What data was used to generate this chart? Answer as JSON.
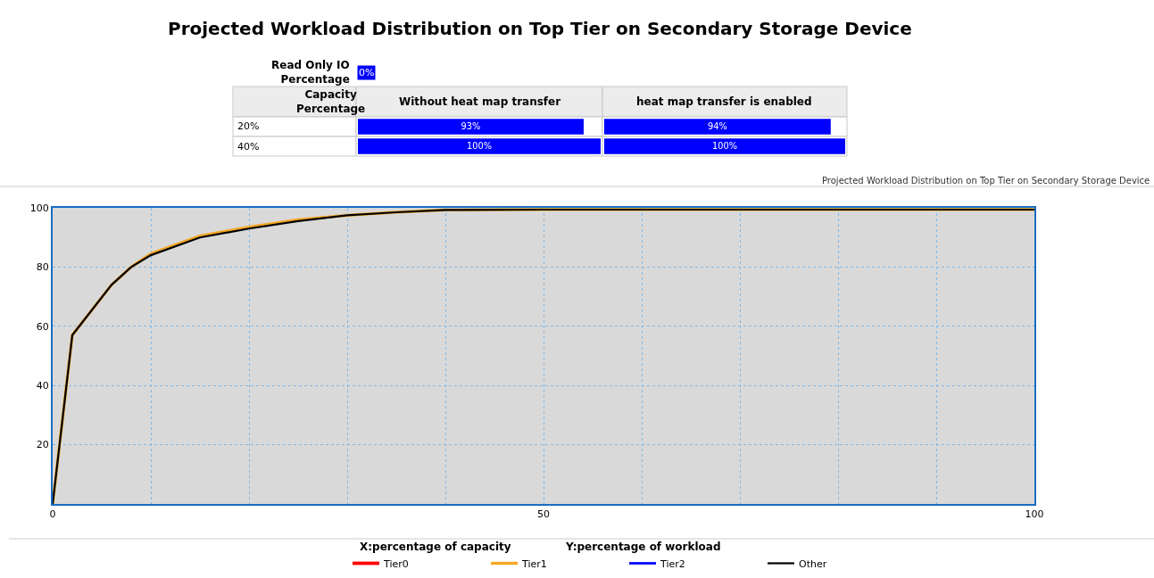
{
  "chart_data": [
    {
      "type": "other",
      "title": "Projected Workload Distribution on Top Tier on Secondary Storage Device",
      "annotations": [
        "Read Only IO Percentage",
        "0%"
      ],
      "legend_title": "Capacity Percentage",
      "categories": [
        "20%",
        "40%"
      ],
      "series": [
        {
          "name": "Without heat map transfer",
          "color": "#0000ff",
          "values": [
            93,
            100
          ],
          "value_labels": [
            "93%",
            "100%"
          ]
        },
        {
          "name": "heat map transfer is enabled",
          "color": "#0000ff",
          "values": [
            94,
            100
          ],
          "value_labels": [
            "94%",
            "100%"
          ]
        }
      ]
    },
    {
      "type": "line",
      "annotations": [
        "Projected Workload Distribution on Top Tier on Secondary Storage Device",
        "X:percentage of capacity",
        "Y:percentage of workload"
      ],
      "x": [
        0,
        2,
        6,
        8,
        10,
        15,
        20,
        25,
        30,
        35,
        40,
        50,
        60,
        70,
        80,
        90,
        100
      ],
      "series": [
        {
          "name": "Tier0",
          "color": "#ff0000",
          "values": [
            null,
            null,
            null,
            null,
            null,
            null,
            null,
            null,
            null,
            null,
            null,
            null,
            null,
            null,
            null,
            null,
            null
          ]
        },
        {
          "name": "Tier1",
          "color": "#f5a623",
          "values": [
            0,
            57,
            74,
            80,
            84.5,
            90.5,
            93.5,
            96,
            97.5,
            98.5,
            99.3,
            99.4,
            99.4,
            99.4,
            99.4,
            99.4,
            99.4
          ]
        },
        {
          "name": "Tier2",
          "color": "#0000ff",
          "values": [
            null,
            null,
            null,
            null,
            null,
            null,
            null,
            null,
            null,
            null,
            null,
            null,
            null,
            null,
            null,
            null,
            null
          ]
        },
        {
          "name": "Other",
          "color": "#000000",
          "values": [
            0,
            57,
            74,
            80,
            84,
            90,
            93,
            95.5,
            97.5,
            98.5,
            99.3,
            99.4,
            99.4,
            99.4,
            99.4,
            99.4,
            99.4
          ]
        }
      ],
      "xlim": [
        0,
        100
      ],
      "ylim": [
        0,
        100
      ],
      "xticks": [
        0,
        {
          "value": 10,
          "label": null
        },
        {
          "value": 20,
          "label": null
        },
        {
          "value": 30,
          "label": null
        },
        {
          "value": 40,
          "label": null
        },
        50,
        {
          "value": 60,
          "label": null
        },
        {
          "value": 70,
          "label": null
        },
        {
          "value": 80,
          "label": null
        },
        {
          "value": 90,
          "label": null
        },
        100
      ],
      "yticks": [
        20,
        40,
        60,
        80,
        100
      ],
      "grid": true,
      "legend": "bottom",
      "marker": "none",
      "line_style": "solid"
    }
  ]
}
